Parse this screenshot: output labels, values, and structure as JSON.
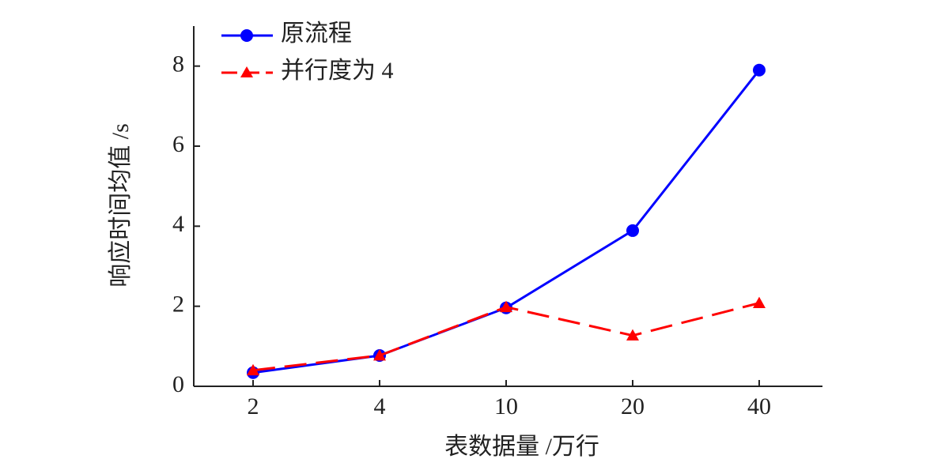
{
  "chart_data": {
    "type": "line",
    "categories": [
      "2",
      "4",
      "10",
      "20",
      "40"
    ],
    "x_label": "表数据量 /万行",
    "y_label": "响应时间均值 /s",
    "ylim": [
      0,
      9
    ],
    "yticks": [
      0,
      2,
      4,
      6,
      8
    ],
    "legend": "top-left",
    "series": [
      {
        "name": "原流程",
        "color": "#0000ff",
        "marker": "circle",
        "dash": "solid",
        "values": [
          0.34,
          0.77,
          1.96,
          3.89,
          7.9
        ]
      },
      {
        "name": "并行度为 4",
        "color": "#ff0000",
        "marker": "triangle",
        "dash": "dashed",
        "values": [
          0.4,
          0.77,
          1.98,
          1.27,
          2.08
        ]
      }
    ]
  }
}
